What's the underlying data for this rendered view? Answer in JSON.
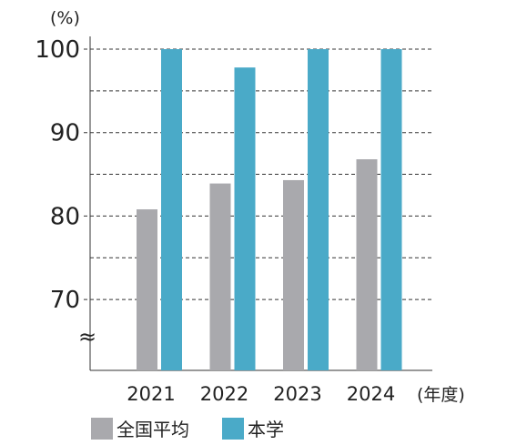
{
  "chart_data": {
    "type": "bar",
    "unit_label": "(%)",
    "x_unit_label": "(年度)",
    "categories": [
      "2021",
      "2022",
      "2023",
      "2024"
    ],
    "series": [
      {
        "name": "全国平均",
        "color": "#a9a9ad",
        "values": [
          80.8,
          83.9,
          84.3,
          86.8
        ]
      },
      {
        "name": "本学",
        "color": "#4aaac8",
        "values": [
          100,
          97.8,
          100,
          100
        ]
      }
    ],
    "y_ticks": [
      "70",
      "80",
      "90",
      "100"
    ],
    "ylim": [
      61.5,
      100
    ],
    "axis_break": "≈",
    "gridlines": "dashed",
    "legend_position": "bottom-left"
  }
}
